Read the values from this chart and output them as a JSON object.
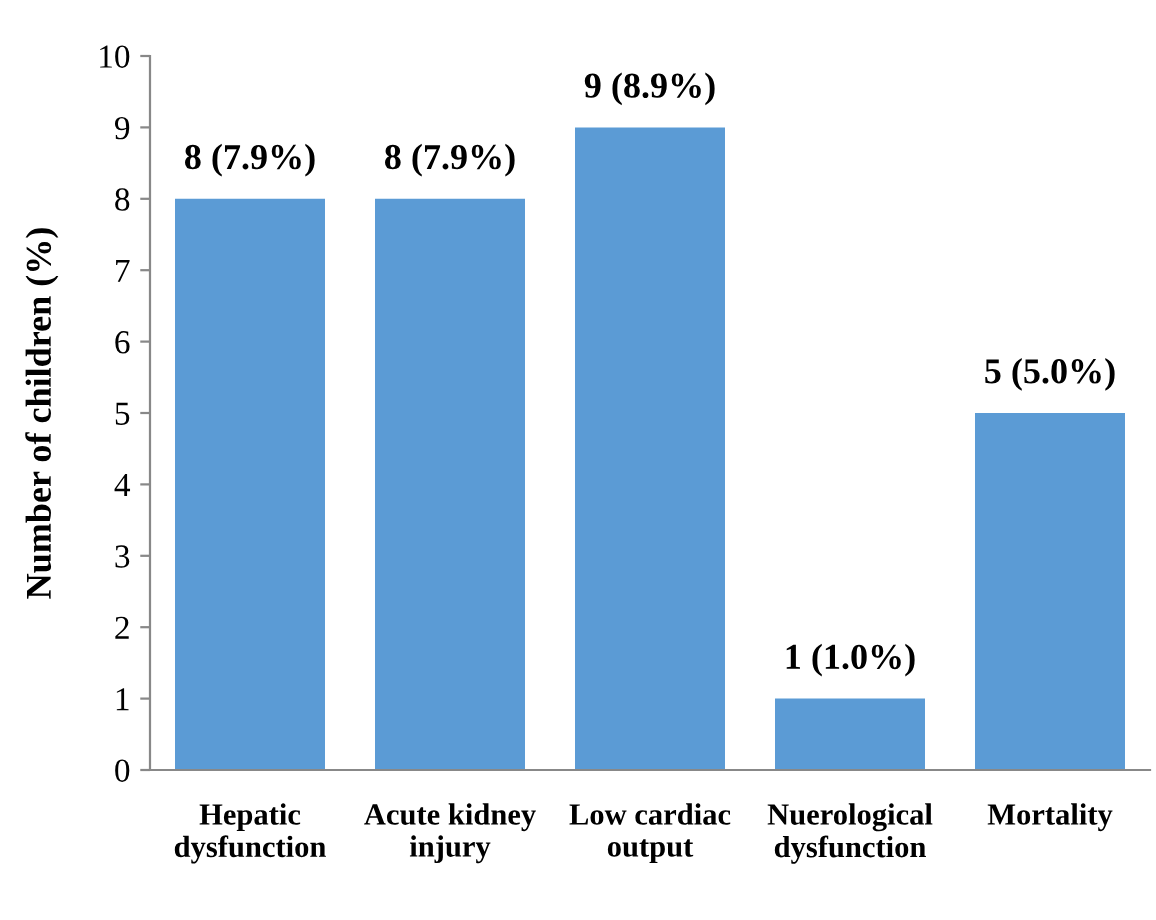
{
  "chart_data": {
    "type": "bar",
    "ylabel": "Number of children (%)",
    "categories": [
      "Hepatic\ndysfunction",
      "Acute kidney\ninjury",
      "Low cardiac\noutput",
      "Nuerological\ndysfunction",
      "Mortality"
    ],
    "values": [
      8,
      8,
      9,
      1,
      5
    ],
    "value_labels": [
      "8 (7.9%)",
      "8 (7.9%)",
      "9 (8.9%)",
      "1 (1.0%)",
      "5 (5.0%)"
    ],
    "color": "#5b9bd5",
    "ylim": [
      0,
      10
    ],
    "yticks": [
      0,
      1,
      2,
      3,
      4,
      5,
      6,
      7,
      8,
      9,
      10
    ],
    "grid": false
  }
}
